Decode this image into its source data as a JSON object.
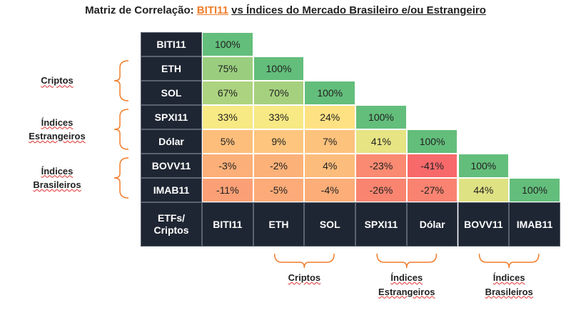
{
  "chart_data": {
    "type": "heatmap",
    "title_prefix": "Matriz de Correlação:",
    "title_highlight": "BITI11",
    "title_suffix": "vs Índices do Mercado Brasileiro e/ou Estrangeiro",
    "corner_label": "ETFs/ Criptos",
    "rows": [
      "BITI11",
      "ETH",
      "SOL",
      "SPXI11",
      "Dólar",
      "BOVV11",
      "IMAB11"
    ],
    "columns": [
      "BITI11",
      "ETH",
      "SOL",
      "SPXI11",
      "Dólar",
      "BOVV11",
      "IMAB11"
    ],
    "values": [
      [
        100
      ],
      [
        75,
        100
      ],
      [
        67,
        70,
        100
      ],
      [
        33,
        33,
        24,
        100
      ],
      [
        5,
        9,
        7,
        41,
        100
      ],
      [
        -3,
        -2,
        4,
        -23,
        -41,
        100
      ],
      [
        -11,
        -5,
        -4,
        -26,
        -27,
        44,
        100
      ]
    ],
    "value_labels": [
      [
        "100%"
      ],
      [
        "75%",
        "100%"
      ],
      [
        "67%",
        "70%",
        "100%"
      ],
      [
        "33%",
        "33%",
        "24%",
        "100%"
      ],
      [
        "5%",
        "9%",
        "7%",
        "41%",
        "100%"
      ],
      [
        "-3%",
        "-2%",
        "4%",
        "-23%",
        "-41%",
        "100%"
      ],
      [
        "-11%",
        "-5%",
        "-4%",
        "-26%",
        "-27%",
        "44%",
        "100%"
      ]
    ],
    "groups": [
      "Criptos",
      "Índices Estrangeiros",
      "Índices Brasileiros"
    ],
    "color_scale": [
      "#f8696b",
      "#ffeb84",
      "#63be7b"
    ],
    "header_color": "#1f2633",
    "accent_color": "#f07d2b"
  }
}
